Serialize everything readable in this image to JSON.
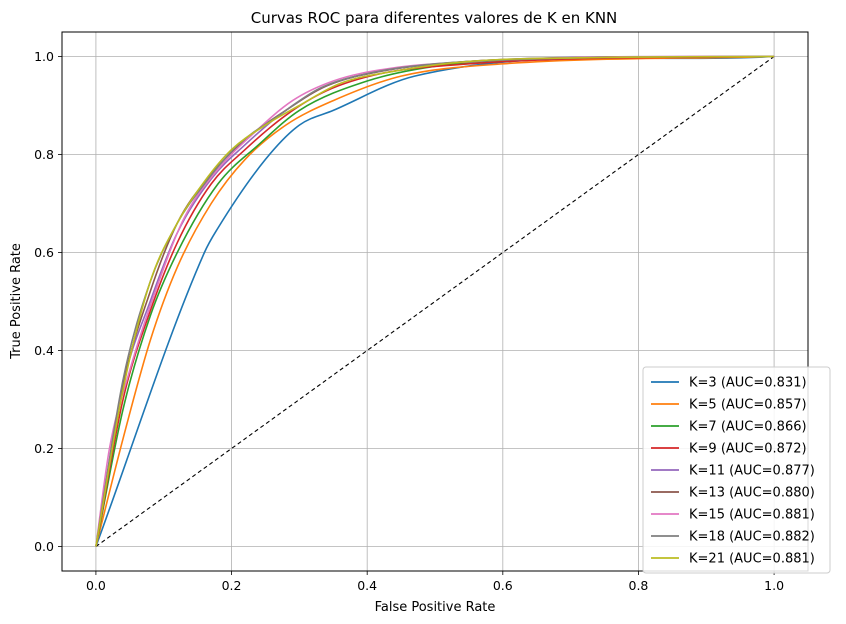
{
  "chart_data": {
    "type": "line",
    "title": "Curvas ROC para diferentes valores de K en KNN",
    "xlabel": "False Positive Rate",
    "ylabel": "True Positive Rate",
    "xlim": [
      -0.05,
      1.05
    ],
    "ylim": [
      -0.05,
      1.05
    ],
    "xticks": [
      "0.0",
      "0.2",
      "0.4",
      "0.6",
      "0.8",
      "1.0"
    ],
    "yticks": [
      "0.0",
      "0.2",
      "0.4",
      "0.6",
      "0.8",
      "1.0"
    ],
    "grid": true,
    "legend_position": "lower-right",
    "diagonal": {
      "x": [
        0,
        1
      ],
      "y": [
        0,
        1
      ],
      "style": "dashed",
      "color": "#000000"
    },
    "series": [
      {
        "name": "K=3 (AUC=0.831)",
        "color": "#1f77b4",
        "x": [
          0,
          0.16,
          0.18,
          0.25,
          0.3,
          0.35,
          0.47,
          1.0
        ],
        "y": [
          0,
          0.6,
          0.65,
          0.79,
          0.86,
          0.89,
          0.96,
          1.0
        ]
      },
      {
        "name": "K=5 (AUC=0.857)",
        "color": "#ff7f0e",
        "x": [
          0,
          0.04,
          0.08,
          0.12,
          0.17,
          0.22,
          0.28,
          0.35,
          0.45,
          0.6,
          1.0
        ],
        "y": [
          0,
          0.22,
          0.42,
          0.57,
          0.7,
          0.79,
          0.86,
          0.91,
          0.96,
          0.985,
          1.0
        ]
      },
      {
        "name": "K=7 (AUC=0.866)",
        "color": "#2ca02c",
        "x": [
          0,
          0.04,
          0.08,
          0.12,
          0.18,
          0.24,
          0.3,
          0.4,
          0.5,
          0.65,
          1.0
        ],
        "y": [
          0,
          0.28,
          0.47,
          0.6,
          0.74,
          0.82,
          0.89,
          0.95,
          0.98,
          0.995,
          1.0
        ]
      },
      {
        "name": "K=9 (AUC=0.872)",
        "color": "#d62728",
        "x": [
          0,
          0.04,
          0.08,
          0.12,
          0.17,
          0.22,
          0.28,
          0.34,
          0.42,
          0.55,
          0.7,
          1.0
        ],
        "y": [
          0,
          0.3,
          0.48,
          0.62,
          0.74,
          0.81,
          0.88,
          0.93,
          0.965,
          0.985,
          0.995,
          1.0
        ]
      },
      {
        "name": "K=11 (AUC=0.877)",
        "color": "#9467bd",
        "x": [
          0,
          0.04,
          0.08,
          0.12,
          0.17,
          0.22,
          0.28,
          0.34,
          0.42,
          0.55,
          0.7,
          1.0
        ],
        "y": [
          0,
          0.33,
          0.5,
          0.64,
          0.75,
          0.82,
          0.89,
          0.94,
          0.97,
          0.99,
          0.998,
          1.0
        ]
      },
      {
        "name": "K=13 (AUC=0.880)",
        "color": "#8c564b",
        "x": [
          0,
          0.04,
          0.08,
          0.12,
          0.17,
          0.22,
          0.28,
          0.34,
          0.42,
          0.55,
          0.72,
          1.0
        ],
        "y": [
          0,
          0.33,
          0.52,
          0.66,
          0.76,
          0.83,
          0.89,
          0.94,
          0.97,
          0.99,
          0.998,
          1.0
        ]
      },
      {
        "name": "K=15 (AUC=0.881)",
        "color": "#e377c2",
        "x": [
          0,
          0.02,
          0.05,
          0.09,
          0.13,
          0.18,
          0.23,
          0.29,
          0.35,
          0.43,
          0.56,
          0.72,
          1.0
        ],
        "y": [
          0,
          0.2,
          0.36,
          0.53,
          0.67,
          0.77,
          0.84,
          0.91,
          0.95,
          0.975,
          0.99,
          0.998,
          1.0
        ]
      },
      {
        "name": "K=18 (AUC=0.882)",
        "color": "#7f7f7f",
        "x": [
          0,
          0.04,
          0.08,
          0.12,
          0.16,
          0.21,
          0.27,
          0.33,
          0.4,
          0.5,
          0.65,
          0.8,
          1.0
        ],
        "y": [
          0,
          0.34,
          0.54,
          0.66,
          0.74,
          0.82,
          0.88,
          0.935,
          0.965,
          0.985,
          0.995,
          0.999,
          1.0
        ]
      },
      {
        "name": "K=21 (AUC=0.881)",
        "color": "#bcbd22",
        "x": [
          0,
          0.04,
          0.08,
          0.12,
          0.16,
          0.2,
          0.25,
          0.3,
          0.36,
          0.44,
          0.55,
          0.75,
          1.0
        ],
        "y": [
          0,
          0.32,
          0.54,
          0.66,
          0.745,
          0.81,
          0.86,
          0.9,
          0.945,
          0.97,
          0.99,
          0.998,
          1.0
        ]
      }
    ]
  }
}
